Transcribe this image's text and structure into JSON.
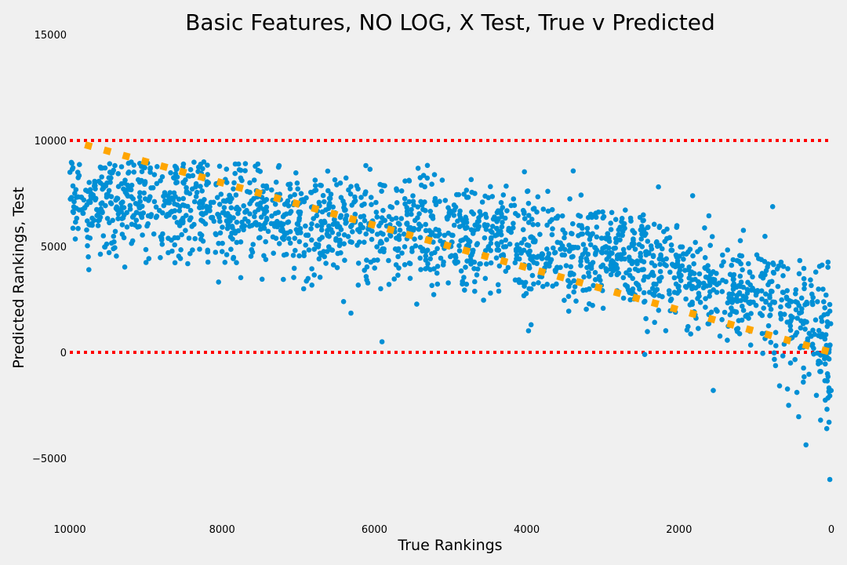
{
  "chart_data": {
    "type": "scatter",
    "title": "Basic Features, NO LOG, X Test, True v Predicted",
    "xlabel": "True Rankings",
    "ylabel": "Predicted Rankings, Test",
    "xlim": [
      10000,
      0
    ],
    "ylim": [
      -8000,
      15000
    ],
    "x_ticks": [
      "10000",
      "8000",
      "6000",
      "4000",
      "2000",
      "0"
    ],
    "y_ticks": [
      "15000",
      "10000",
      "5000",
      "0",
      "−5000"
    ],
    "grid": false,
    "colors": {
      "scatter": "#008fd5",
      "identity_line": "#ffa500",
      "bound_lines": "#ff0000",
      "background": "#f0f0f0"
    },
    "bound_lines": [
      10000,
      0
    ],
    "identity_line": {
      "x": [
        9800,
        0
      ],
      "y": [
        9800,
        0
      ]
    },
    "trend": {
      "x": [
        10000,
        9000,
        8000,
        7000,
        6000,
        5000,
        4000,
        3000,
        2000,
        1500,
        1000,
        500,
        250,
        0
      ],
      "y": [
        7100,
        6900,
        6700,
        6300,
        5900,
        5600,
        5100,
        4500,
        3800,
        3100,
        2600,
        1600,
        800,
        200
      ],
      "spread": [
        1100,
        1200,
        1300,
        1250,
        1250,
        1200,
        1200,
        1150,
        1200,
        1250,
        1300,
        1500,
        1700,
        1900
      ]
    },
    "n_points": 2000,
    "outliers": [
      {
        "x": 20,
        "y": -6000
      },
      {
        "x": 60,
        "y": -3600
      },
      {
        "x": 30,
        "y": -3300
      },
      {
        "x": 1550,
        "y": -1800
      },
      {
        "x": 560,
        "y": -2500
      },
      {
        "x": 2450,
        "y": -100
      },
      {
        "x": 5900,
        "y": 500
      },
      {
        "x": 9750,
        "y": 3900
      }
    ]
  }
}
